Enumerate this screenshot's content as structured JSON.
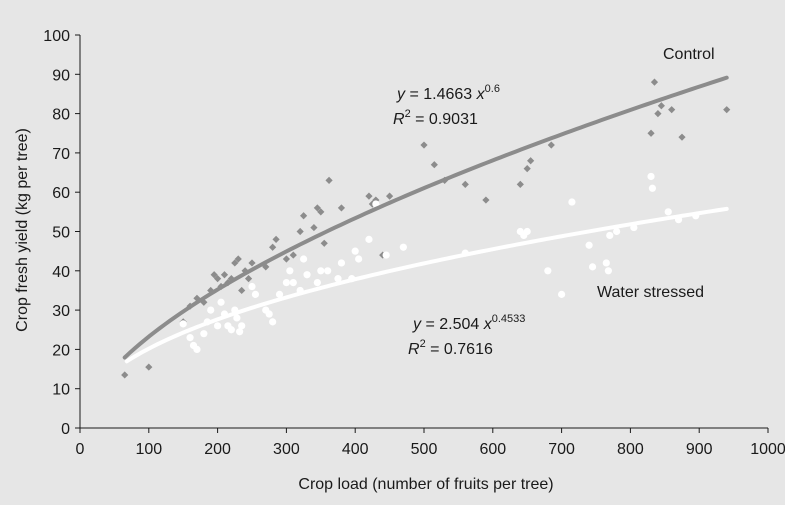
{
  "chart_data": {
    "type": "scatter",
    "xlabel": "Crop load (number of fruits per tree)",
    "ylabel": "Crop fresh yield (kg per tree)",
    "xlim": [
      0,
      1000
    ],
    "ylim": [
      0,
      100
    ],
    "x_ticks": [
      "0",
      "100",
      "200",
      "300",
      "400",
      "500",
      "600",
      "700",
      "800",
      "900",
      "1000"
    ],
    "y_ticks": [
      "0",
      "10",
      "20",
      "30",
      "40",
      "50",
      "60",
      "70",
      "80",
      "90",
      "100"
    ],
    "grid": false,
    "series": [
      {
        "name": "Control",
        "color": "#8c8c8c",
        "marker": "diamond",
        "fit": {
          "a": 1.4663,
          "b": 0.6,
          "x_range": [
            65,
            940
          ]
        },
        "equation": {
          "lhs": "y",
          "coef": "= 1.4663",
          "base": "x",
          "exp": "0.6"
        },
        "r2": {
          "r": "R",
          "exp": "2",
          "value": "= 0.9031"
        },
        "points": [
          [
            65,
            13.5
          ],
          [
            100,
            15.5
          ],
          [
            150,
            27
          ],
          [
            160,
            31
          ],
          [
            170,
            33
          ],
          [
            180,
            32
          ],
          [
            190,
            35
          ],
          [
            195,
            39
          ],
          [
            200,
            38
          ],
          [
            205,
            36
          ],
          [
            210,
            39
          ],
          [
            215,
            37
          ],
          [
            220,
            38
          ],
          [
            225,
            42
          ],
          [
            230,
            43
          ],
          [
            235,
            35
          ],
          [
            240,
            40
          ],
          [
            245,
            38
          ],
          [
            250,
            42
          ],
          [
            270,
            41
          ],
          [
            280,
            46
          ],
          [
            285,
            48
          ],
          [
            300,
            43
          ],
          [
            310,
            44
          ],
          [
            320,
            50
          ],
          [
            325,
            54
          ],
          [
            340,
            51
          ],
          [
            345,
            56
          ],
          [
            350,
            55
          ],
          [
            355,
            47
          ],
          [
            362,
            63
          ],
          [
            380,
            56
          ],
          [
            420,
            59
          ],
          [
            425,
            57
          ],
          [
            430,
            58
          ],
          [
            440,
            44
          ],
          [
            450,
            59
          ],
          [
            500,
            72
          ],
          [
            515,
            67
          ],
          [
            530,
            63
          ],
          [
            560,
            62
          ],
          [
            590,
            58
          ],
          [
            640,
            62
          ],
          [
            650,
            66
          ],
          [
            655,
            68
          ],
          [
            685,
            72
          ],
          [
            830,
            75
          ],
          [
            835,
            88
          ],
          [
            840,
            80
          ],
          [
            845,
            82
          ],
          [
            860,
            81
          ],
          [
            875,
            74
          ],
          [
            940,
            81
          ]
        ]
      },
      {
        "name": "Water stressed",
        "color": "#ffffff",
        "marker": "circle",
        "fit": {
          "a": 2.504,
          "b": 0.4533,
          "x_range": [
            68,
            940
          ]
        },
        "equation": {
          "lhs": "y",
          "coef": "= 2.504",
          "base": "x",
          "exp": "0.4533"
        },
        "r2": {
          "r": "R",
          "exp": "2",
          "value": "= 0.7616"
        },
        "points": [
          [
            150,
            26.5
          ],
          [
            160,
            23
          ],
          [
            165,
            21
          ],
          [
            170,
            20
          ],
          [
            180,
            24
          ],
          [
            185,
            27
          ],
          [
            190,
            30
          ],
          [
            200,
            26
          ],
          [
            205,
            32
          ],
          [
            210,
            29
          ],
          [
            215,
            26
          ],
          [
            220,
            25
          ],
          [
            225,
            30
          ],
          [
            228,
            28
          ],
          [
            232,
            24.5
          ],
          [
            235,
            26
          ],
          [
            250,
            36
          ],
          [
            255,
            34
          ],
          [
            270,
            30
          ],
          [
            275,
            29
          ],
          [
            280,
            27
          ],
          [
            290,
            34
          ],
          [
            300,
            37
          ],
          [
            305,
            40
          ],
          [
            310,
            37
          ],
          [
            320,
            35
          ],
          [
            325,
            43
          ],
          [
            330,
            39
          ],
          [
            345,
            37
          ],
          [
            350,
            40
          ],
          [
            360,
            40
          ],
          [
            375,
            38
          ],
          [
            380,
            42
          ],
          [
            395,
            38
          ],
          [
            400,
            45
          ],
          [
            405,
            43
          ],
          [
            420,
            48
          ],
          [
            430,
            57
          ],
          [
            445,
            44
          ],
          [
            470,
            46
          ],
          [
            560,
            44.5
          ],
          [
            640,
            50
          ],
          [
            645,
            49
          ],
          [
            650,
            50
          ],
          [
            680,
            40
          ],
          [
            700,
            34
          ],
          [
            715,
            57.5
          ],
          [
            740,
            46.5
          ],
          [
            745,
            41
          ],
          [
            765,
            42
          ],
          [
            768,
            40
          ],
          [
            770,
            49
          ],
          [
            780,
            50
          ],
          [
            805,
            51
          ],
          [
            830,
            64
          ],
          [
            832,
            61
          ],
          [
            855,
            55
          ],
          [
            870,
            53
          ],
          [
            895,
            54
          ]
        ]
      }
    ]
  }
}
